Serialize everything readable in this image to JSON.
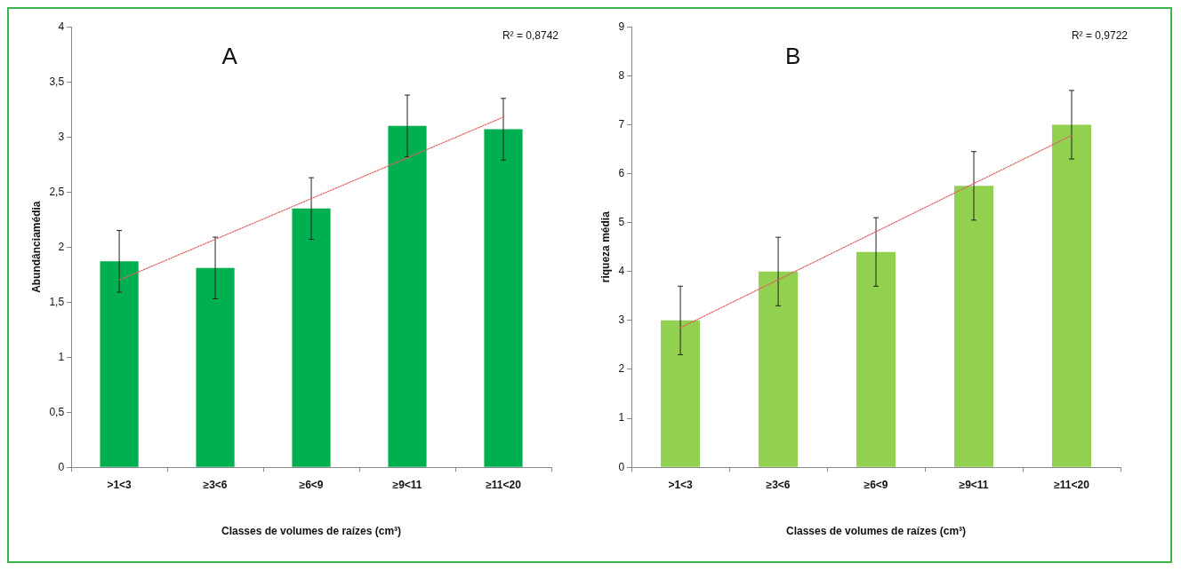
{
  "chart_data": [
    {
      "type": "bar",
      "title": "A",
      "categories": [
        ">1<3",
        "≥3<6",
        "≥6<9",
        "≥9<11",
        "≥11<20"
      ],
      "xlabel": "Classes de volumes de raízes (cm³)",
      "ylabel": "Abundânciamédia",
      "ylim": [
        0,
        4
      ],
      "yticks": [
        0,
        {
          "value": 0.5,
          "label": "0,5"
        },
        1,
        {
          "value": 1.5,
          "label": "1,5"
        },
        2,
        {
          "value": 2.5,
          "label": "2,5"
        },
        3,
        {
          "value": 3.5,
          "label": "3,5"
        },
        4
      ],
      "grid": false,
      "legend": false,
      "annotations": [
        "R² = 0,8742"
      ],
      "series": [
        {
          "color": "#00b050",
          "values": [
            1.87,
            1.81,
            2.35,
            3.1,
            3.07
          ],
          "errors": [
            0.28,
            0.28,
            0.28,
            0.28,
            0.28
          ]
        },
        {
          "type": "line",
          "color": "#e06060",
          "x": [
            ">1<3",
            "≥11<20"
          ],
          "values": [
            1.7,
            3.18
          ],
          "line_style": "dotted",
          "marker": "none"
        }
      ]
    },
    {
      "type": "bar",
      "title": "B",
      "categories": [
        ">1<3",
        "≥3<6",
        "≥6<9",
        "≥9<11",
        "≥11<20"
      ],
      "xlabel": "Classes de volumes de raízes (cm³)",
      "ylabel": "riqueza média",
      "ylim": [
        0,
        9
      ],
      "yticks": [
        0,
        1,
        2,
        3,
        4,
        5,
        6,
        7,
        8,
        9
      ],
      "grid": false,
      "legend": false,
      "annotations": [
        "R² = 0,9722"
      ],
      "series": [
        {
          "color": "#92d050",
          "values": [
            3,
            4,
            4.4,
            5.75,
            7
          ],
          "errors": [
            0.7,
            0.7,
            0.7,
            0.7,
            0.7
          ]
        },
        {
          "type": "line",
          "color": "#e06060",
          "x": [
            ">1<3",
            "≥11<20"
          ],
          "values": [
            2.85,
            6.78
          ],
          "line_style": "dotted",
          "marker": "none"
        }
      ]
    }
  ]
}
